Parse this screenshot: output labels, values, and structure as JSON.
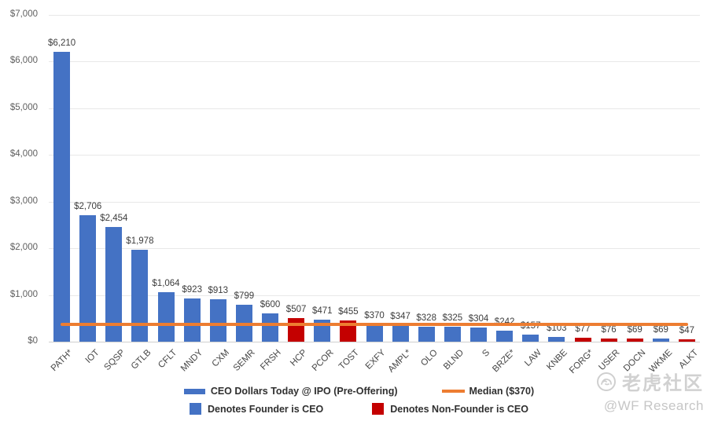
{
  "chart_data": {
    "type": "bar",
    "title": "",
    "xlabel": "",
    "ylabel": "",
    "ylim": [
      0,
      7000
    ],
    "grid": "horizontal",
    "y_ticks": [
      {
        "value": 0,
        "label": "$0"
      },
      {
        "value": 1000,
        "label": "$1,000"
      },
      {
        "value": 2000,
        "label": "$2,000"
      },
      {
        "value": 3000,
        "label": "$3,000"
      },
      {
        "value": 4000,
        "label": "$4,000"
      },
      {
        "value": 5000,
        "label": "$5,000"
      },
      {
        "value": 6000,
        "label": "$6,000"
      },
      {
        "value": 7000,
        "label": "$7,000"
      }
    ],
    "categories": [
      "PATH*",
      "IOT",
      "SQSP",
      "GTLB",
      "CFLT",
      "MNDY",
      "CXM",
      "SEMR",
      "FRSH",
      "HCP",
      "PCOR",
      "TOST",
      "EXFY",
      "AMPL*",
      "OLO",
      "BLND",
      "S",
      "BRZE*",
      "LAW",
      "KNBE",
      "FORG*",
      "USER",
      "DOCN",
      "WKME",
      "ALKT"
    ],
    "values": [
      6210,
      2706,
      2454,
      1978,
      1064,
      923,
      913,
      799,
      600,
      507,
      471,
      455,
      370,
      347,
      328,
      325,
      304,
      242,
      157,
      103,
      77,
      76,
      69,
      69,
      47
    ],
    "value_labels": [
      "$6,210",
      "$2,706",
      "$2,454",
      "$1,978",
      "$1,064",
      "$923",
      "$913",
      "$799",
      "$600",
      "$507",
      "$471",
      "$455",
      "$370",
      "$347",
      "$328",
      "$325",
      "$304",
      "$242",
      "$157",
      "$103",
      "$77",
      "$76",
      "$69",
      "$69",
      "$47"
    ],
    "founder_is_ceo": [
      true,
      true,
      true,
      true,
      true,
      true,
      true,
      true,
      true,
      false,
      true,
      false,
      true,
      true,
      true,
      true,
      true,
      true,
      true,
      true,
      false,
      false,
      false,
      true,
      false
    ],
    "median": 370,
    "legend_position": "bottom"
  },
  "legend": {
    "series_label": "CEO Dollars Today @ IPO (Pre-Offering)",
    "median_label": "Median ($370)",
    "founder_label": "Denotes Founder is CEO",
    "nonfounder_label": "Denotes Non-Founder is CEO"
  },
  "watermark": {
    "community_name": "老虎社区",
    "credit": "@WF Research"
  },
  "colors": {
    "founder_bar": "#4472c4",
    "nonfounder_bar": "#c40000",
    "median_line": "#ed7d31",
    "gridline": "#e8e8e8",
    "baseline": "#d0d0d0",
    "watermark": "#cacaca"
  }
}
